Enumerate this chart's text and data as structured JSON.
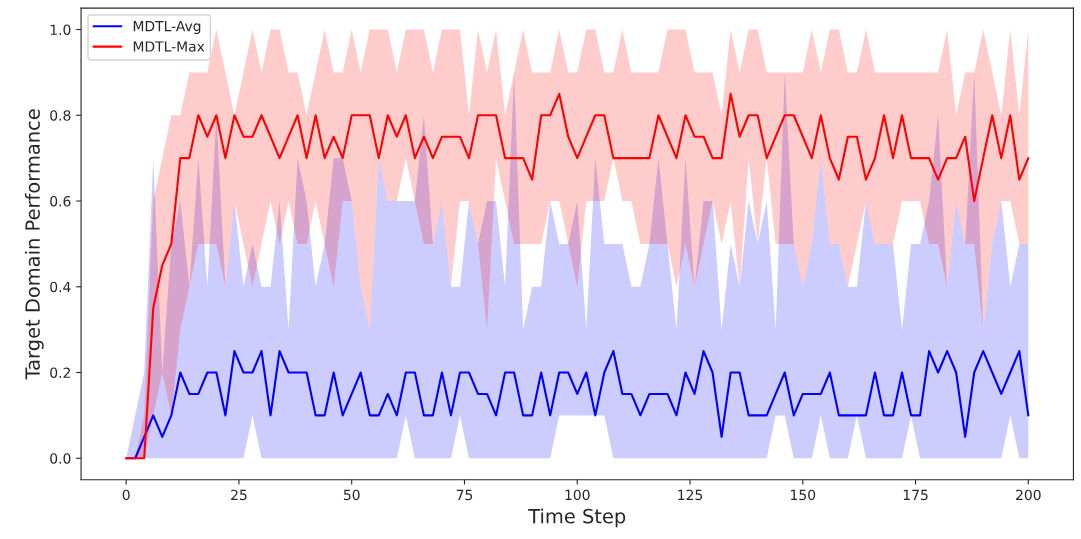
{
  "chart_data": {
    "type": "line",
    "xlabel": "Time Step",
    "ylabel": "Target Domain Performance",
    "x": [
      0,
      2,
      4,
      6,
      8,
      10,
      12,
      14,
      16,
      18,
      20,
      22,
      24,
      26,
      28,
      30,
      32,
      34,
      36,
      38,
      40,
      42,
      44,
      46,
      48,
      50,
      52,
      54,
      56,
      58,
      60,
      62,
      64,
      66,
      68,
      70,
      72,
      74,
      76,
      78,
      80,
      82,
      84,
      86,
      88,
      90,
      92,
      94,
      96,
      98,
      100,
      102,
      104,
      106,
      108,
      110,
      112,
      114,
      116,
      118,
      120,
      122,
      124,
      126,
      128,
      130,
      132,
      134,
      136,
      138,
      140,
      142,
      144,
      146,
      148,
      150,
      152,
      154,
      156,
      158,
      160,
      162,
      164,
      166,
      168,
      170,
      172,
      174,
      176,
      178,
      180,
      182,
      184,
      186,
      188,
      190,
      192,
      194,
      196,
      198,
      200
    ],
    "series": [
      {
        "name": "MDTL-Avg",
        "color": "#0000ff",
        "values": [
          0,
          0,
          0.05,
          0.1,
          0.05,
          0.1,
          0.2,
          0.15,
          0.15,
          0.2,
          0.2,
          0.1,
          0.25,
          0.2,
          0.2,
          0.25,
          0.1,
          0.25,
          0.2,
          0.2,
          0.2,
          0.1,
          0.1,
          0.2,
          0.1,
          0.15,
          0.2,
          0.1,
          0.1,
          0.15,
          0.1,
          0.2,
          0.2,
          0.1,
          0.1,
          0.2,
          0.1,
          0.2,
          0.2,
          0.15,
          0.15,
          0.1,
          0.2,
          0.2,
          0.1,
          0.1,
          0.2,
          0.1,
          0.2,
          0.2,
          0.15,
          0.2,
          0.1,
          0.2,
          0.25,
          0.15,
          0.15,
          0.1,
          0.15,
          0.15,
          0.15,
          0.1,
          0.2,
          0.15,
          0.25,
          0.2,
          0.05,
          0.2,
          0.2,
          0.1,
          0.1,
          0.1,
          0.15,
          0.2,
          0.1,
          0.15,
          0.15,
          0.15,
          0.2,
          0.1,
          0.1,
          0.1,
          0.1,
          0.2,
          0.1,
          0.1,
          0.2,
          0.1,
          0.1,
          0.25,
          0.2,
          0.25,
          0.2,
          0.05,
          0.2,
          0.25,
          0.2,
          0.15,
          0.2,
          0.25,
          0.1
        ],
        "lower": [
          0,
          0,
          0,
          0,
          0,
          0,
          0,
          0,
          0,
          0,
          0,
          0,
          0,
          0,
          0.1,
          0,
          0,
          0,
          0,
          0,
          0,
          0,
          0,
          0,
          0,
          0,
          0,
          0,
          0,
          0,
          0,
          0.1,
          0,
          0,
          0,
          0,
          0,
          0.1,
          0,
          0,
          0,
          0,
          0,
          0,
          0,
          0,
          0,
          0,
          0.1,
          0.1,
          0.1,
          0.1,
          0.1,
          0.1,
          0,
          0,
          0,
          0,
          0,
          0,
          0,
          0,
          0,
          0,
          0,
          0,
          0,
          0,
          0,
          0,
          0,
          0,
          0.1,
          0.1,
          0,
          0,
          0,
          0.1,
          0,
          0,
          0,
          0.1,
          0,
          0,
          0,
          0,
          0,
          0.1,
          0,
          0,
          0,
          0,
          0,
          0,
          0,
          0,
          0,
          0,
          0.1,
          0,
          0
        ],
        "upper": [
          0,
          0.1,
          0.2,
          0.7,
          0.2,
          0.5,
          0.6,
          0.4,
          0.7,
          0.4,
          0.8,
          0.4,
          0.6,
          0.4,
          0.5,
          0.4,
          0.4,
          0.6,
          0.3,
          0.7,
          0.6,
          0.4,
          0.5,
          0.7,
          0.7,
          0.6,
          0.4,
          0.3,
          0.7,
          0.6,
          0.6,
          0.6,
          0.6,
          0.8,
          0.5,
          0.6,
          0.4,
          0.4,
          0.6,
          0.5,
          0.6,
          0.6,
          0.4,
          0.9,
          0.3,
          0.4,
          0.4,
          0.6,
          0.5,
          0.5,
          0.6,
          0.3,
          0.7,
          0.5,
          0.5,
          0.5,
          0.4,
          0.4,
          0.5,
          0.7,
          0.5,
          0.3,
          0.7,
          0.4,
          0.6,
          0.6,
          0.3,
          0.5,
          0.4,
          0.6,
          0.5,
          0.6,
          0.3,
          0.9,
          0.5,
          0.4,
          0.5,
          0.7,
          0.5,
          0.5,
          0.4,
          0.4,
          0.6,
          0.5,
          0.5,
          0.5,
          0.3,
          0.5,
          0.5,
          0.6,
          0.8,
          0.4,
          0.6,
          0.5,
          0.9,
          0.3,
          0.5,
          0.6,
          0.4,
          0.5,
          0.5
        ]
      },
      {
        "name": "MDTL-Max",
        "color": "#ff0000",
        "values": [
          0,
          0,
          0,
          0.35,
          0.45,
          0.5,
          0.7,
          0.7,
          0.8,
          0.75,
          0.8,
          0.7,
          0.8,
          0.75,
          0.75,
          0.8,
          0.75,
          0.7,
          0.75,
          0.8,
          0.7,
          0.8,
          0.7,
          0.75,
          0.7,
          0.8,
          0.8,
          0.8,
          0.7,
          0.8,
          0.75,
          0.8,
          0.7,
          0.75,
          0.7,
          0.75,
          0.75,
          0.75,
          0.7,
          0.8,
          0.8,
          0.8,
          0.7,
          0.7,
          0.7,
          0.65,
          0.8,
          0.8,
          0.85,
          0.75,
          0.7,
          0.75,
          0.8,
          0.8,
          0.7,
          0.7,
          0.7,
          0.7,
          0.7,
          0.8,
          0.75,
          0.7,
          0.8,
          0.75,
          0.75,
          0.7,
          0.7,
          0.85,
          0.75,
          0.8,
          0.8,
          0.7,
          0.75,
          0.8,
          0.8,
          0.75,
          0.7,
          0.8,
          0.7,
          0.65,
          0.75,
          0.75,
          0.65,
          0.7,
          0.8,
          0.7,
          0.8,
          0.7,
          0.7,
          0.7,
          0.65,
          0.7,
          0.7,
          0.75,
          0.6,
          0.7,
          0.8,
          0.7,
          0.8,
          0.65,
          0.7
        ],
        "lower": [
          0,
          0,
          0,
          0.1,
          0.2,
          0.1,
          0.3,
          0.4,
          0.5,
          0.5,
          0.5,
          0.4,
          0.6,
          0.5,
          0.4,
          0.5,
          0.6,
          0.5,
          0.6,
          0.5,
          0.5,
          0.6,
          0.5,
          0.4,
          0.6,
          0.6,
          0.4,
          0.3,
          0.7,
          0.6,
          0.6,
          0.7,
          0.6,
          0.5,
          0.5,
          0.6,
          0.4,
          0.6,
          0.6,
          0.5,
          0.3,
          0.7,
          0.6,
          0.5,
          0.5,
          0.5,
          0.5,
          0.6,
          0.6,
          0.5,
          0.4,
          0.6,
          0.6,
          0.6,
          0.7,
          0.6,
          0.6,
          0.5,
          0.5,
          0.5,
          0.5,
          0.4,
          0.5,
          0.4,
          0.5,
          0.6,
          0.5,
          0.6,
          0.4,
          0.7,
          0.5,
          0.7,
          0.5,
          0.5,
          0.5,
          0.4,
          0.5,
          0.7,
          0.5,
          0.5,
          0.4,
          0.5,
          0.6,
          0.5,
          0.5,
          0.5,
          0.6,
          0.6,
          0.6,
          0.5,
          0.5,
          0.4,
          0.6,
          0.5,
          0.5,
          0.3,
          0.5,
          0.6,
          0.6,
          0.5,
          0.5
        ],
        "upper": [
          0,
          0,
          0.1,
          0.6,
          0.7,
          0.8,
          0.8,
          0.9,
          0.9,
          0.9,
          1.0,
          0.9,
          0.8,
          0.9,
          1.0,
          0.9,
          1.0,
          1.0,
          0.9,
          0.9,
          0.8,
          0.9,
          1.0,
          0.9,
          0.9,
          1.0,
          0.9,
          1.0,
          1.0,
          1.0,
          0.9,
          1.0,
          1.0,
          1.0,
          0.9,
          1.0,
          1.0,
          1.0,
          0.8,
          1.0,
          0.9,
          1.0,
          0.8,
          0.9,
          1.0,
          0.9,
          0.9,
          0.9,
          1.0,
          0.9,
          0.9,
          1.0,
          1.0,
          0.9,
          0.9,
          1.0,
          0.9,
          0.9,
          0.9,
          0.9,
          1.0,
          1.0,
          1.0,
          0.9,
          0.9,
          0.9,
          0.8,
          1.0,
          0.9,
          1.0,
          1.0,
          0.9,
          0.9,
          0.9,
          0.9,
          0.9,
          1.0,
          0.9,
          1.0,
          1.0,
          0.9,
          0.9,
          1.0,
          0.9,
          0.9,
          0.9,
          0.9,
          0.9,
          0.9,
          0.9,
          0.9,
          1.0,
          0.8,
          0.9,
          0.9,
          1.0,
          0.9,
          0.8,
          1.0,
          0.8,
          1.0
        ]
      }
    ],
    "xlim": [
      -10,
      210
    ],
    "ylim": [
      -0.05,
      1.05
    ],
    "xticks": [
      0,
      25,
      50,
      75,
      100,
      125,
      150,
      175,
      200
    ],
    "yticks": [
      {
        "value": 0,
        "label": "0.0"
      },
      0.2,
      0.4,
      0.6,
      0.8,
      {
        "value": 1,
        "label": "1.0"
      }
    ],
    "grid": false,
    "legend": "top left",
    "marker": "none",
    "line_style": "solid"
  }
}
